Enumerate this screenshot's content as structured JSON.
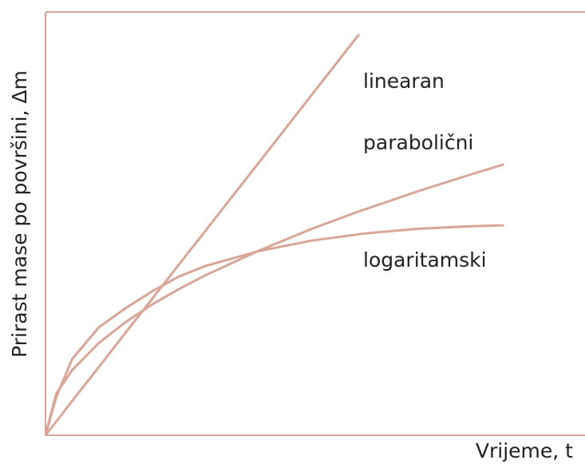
{
  "chart_data": {
    "type": "line",
    "x_label": "Vrijeme, t",
    "y_label": "Prirast mase po površini, Δm",
    "x": [
      0,
      2,
      5,
      10,
      15,
      20,
      25,
      30,
      40,
      50,
      58.8,
      60,
      70,
      80,
      86
    ],
    "xlim": [
      0,
      100
    ],
    "ylim": [
      0,
      100
    ],
    "series": [
      {
        "name": "linearan",
        "color": "#d9a596",
        "values": [
          0,
          3.2,
          8.1,
          16.1,
          24.2,
          32.2,
          40.3,
          48.3,
          64.4,
          80.5,
          94.7,
          null,
          null,
          null,
          null
        ]
      },
      {
        "name": "parabolični",
        "color": "#d9a596",
        "values": [
          0,
          9.8,
          15.4,
          21.8,
          26.7,
          30.9,
          34.5,
          37.8,
          43.6,
          48.8,
          52.9,
          53.4,
          57.7,
          61.7,
          64.0
        ]
      },
      {
        "name": "logaritamski",
        "color": "#d9a596",
        "values": [
          0,
          9,
          18,
          25.5,
          30,
          34,
          37.5,
          40,
          43.5,
          46,
          47.5,
          47.7,
          48.8,
          49.4,
          49.6
        ]
      }
    ]
  }
}
